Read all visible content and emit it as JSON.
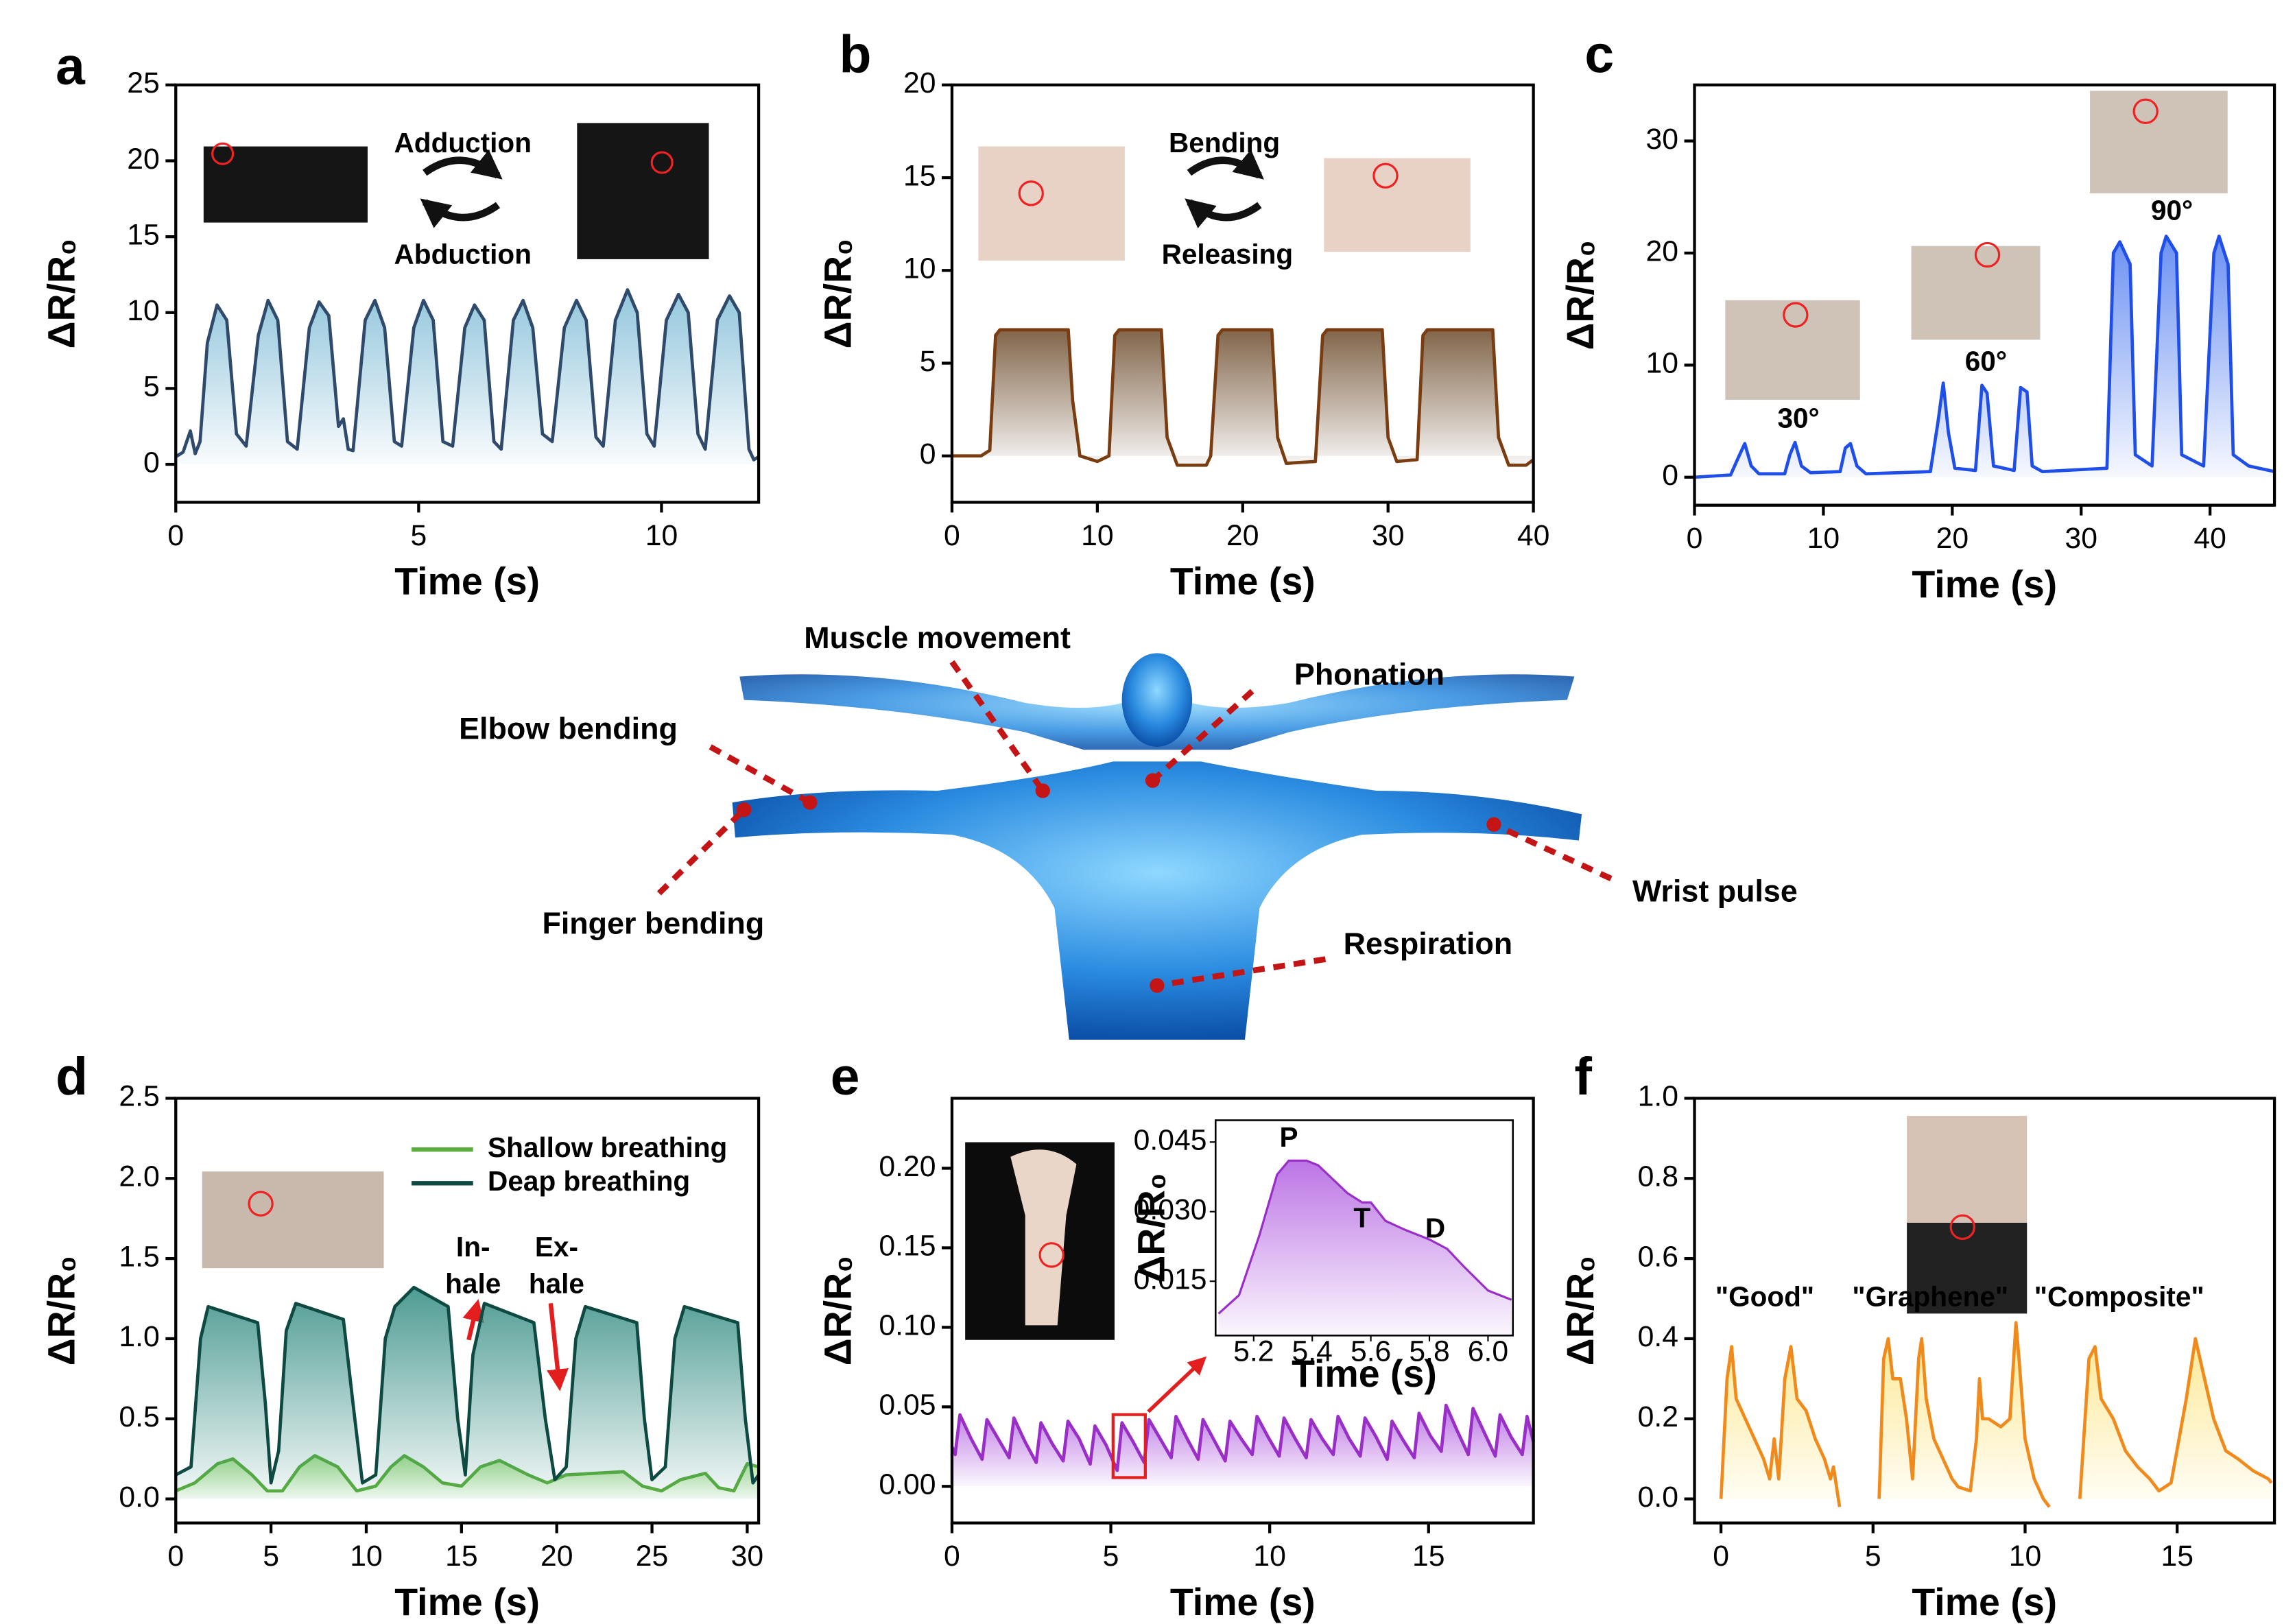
{
  "chart_data": [
    {
      "type": "line",
      "panel_label": "a",
      "xlabel": "Time (s)",
      "ylabel": "ΔR/R₀",
      "xlim": [
        0,
        12
      ],
      "ylim": [
        -2.5,
        25
      ],
      "xticks": [
        0,
        5,
        10
      ],
      "yticks": [
        0,
        5,
        10,
        15,
        20,
        25
      ],
      "annotations": [
        "Adduction",
        "Abduction"
      ],
      "series": [
        {
          "color": "#2f4a6b",
          "fill": "#7fbcd6",
          "x": [
            0,
            0.15,
            0.3,
            0.4,
            0.5,
            0.65,
            0.85,
            1.05,
            1.25,
            1.45,
            1.7,
            1.9,
            2.1,
            2.3,
            2.5,
            2.75,
            2.95,
            3.15,
            3.35,
            3.45,
            3.55,
            3.65,
            3.9,
            4.1,
            4.3,
            4.5,
            4.65,
            4.9,
            5.1,
            5.3,
            5.5,
            5.7,
            5.95,
            6.15,
            6.35,
            6.55,
            6.7,
            6.95,
            7.15,
            7.35,
            7.55,
            7.75,
            8.0,
            8.25,
            8.45,
            8.65,
            8.8,
            9.05,
            9.3,
            9.5,
            9.7,
            9.85,
            10.1,
            10.35,
            10.55,
            10.75,
            10.9,
            11.15,
            11.4,
            11.6,
            11.8,
            11.9,
            12
          ],
          "values": [
            0.5,
            0.8,
            2.2,
            0.7,
            1.5,
            8,
            10.5,
            9.5,
            2,
            1.2,
            8.5,
            10.8,
            9.5,
            1.5,
            1,
            9,
            10.7,
            9.8,
            2.5,
            3,
            1,
            0.9,
            9.5,
            10.8,
            9,
            1.5,
            1.2,
            9,
            10.8,
            9.5,
            1.5,
            1.2,
            9,
            10.5,
            9.5,
            1.5,
            1,
            9.5,
            10.8,
            9,
            2,
            1.5,
            9,
            10.8,
            9.5,
            1.8,
            1.2,
            9.5,
            11.5,
            10,
            2,
            1.2,
            9.5,
            11.2,
            10,
            2,
            1,
            9.5,
            11.1,
            10,
            1,
            0.3,
            0.5
          ]
        }
      ]
    },
    {
      "type": "line",
      "panel_label": "b",
      "xlabel": "Time (s)",
      "ylabel": "ΔR/R₀",
      "xlim": [
        0,
        40
      ],
      "ylim": [
        -2.5,
        20
      ],
      "xticks": [
        0,
        10,
        20,
        30,
        40
      ],
      "yticks": [
        0,
        5,
        10,
        15,
        20
      ],
      "annotations": [
        "Bending",
        "Releasing"
      ],
      "series": [
        {
          "color": "#7a3d12",
          "fill": "#6b4a2a",
          "x": [
            0,
            2,
            2.6,
            3,
            3.3,
            8,
            8.3,
            8.8,
            10,
            10.8,
            11.2,
            11.5,
            14.4,
            14.8,
            15.5,
            17.5,
            17.8,
            18.3,
            18.6,
            22,
            22.4,
            23,
            25,
            25.5,
            25.8,
            29.6,
            30,
            30.6,
            32,
            32.4,
            32.7,
            37.2,
            37.6,
            38.3,
            39.5,
            40
          ],
          "values": [
            0,
            0,
            0.3,
            6.5,
            6.8,
            6.8,
            3,
            0,
            -0.3,
            0,
            6.5,
            6.8,
            6.8,
            1,
            -0.5,
            -0.5,
            0,
            6.5,
            6.8,
            6.8,
            1,
            -0.4,
            -0.3,
            6.5,
            6.8,
            6.8,
            1,
            -0.3,
            -0.2,
            6.5,
            6.8,
            6.8,
            1,
            -0.5,
            -0.5,
            -0.2
          ]
        }
      ]
    },
    {
      "type": "line",
      "panel_label": "c",
      "xlabel": "Time (s)",
      "ylabel": "ΔR/R₀",
      "xlim": [
        0,
        45
      ],
      "ylim": [
        -2.5,
        35
      ],
      "xticks": [
        0,
        10,
        20,
        30,
        40
      ],
      "yticks": [
        0,
        10,
        20,
        30
      ],
      "annotations": [
        "30°",
        "60°",
        "90°"
      ],
      "series": [
        {
          "color": "#1f4ee8",
          "fill": "#4f7cf0",
          "x": [
            0,
            2.8,
            3.3,
            3.9,
            4.4,
            5,
            7,
            7.4,
            7.8,
            8.3,
            9,
            11.3,
            11.7,
            12.1,
            12.6,
            13.3,
            18.3,
            18.9,
            19.3,
            19.7,
            20.2,
            21.8,
            22.3,
            22.7,
            23.2,
            24.8,
            25.3,
            25.8,
            26.2,
            27,
            32,
            32.5,
            33,
            33.8,
            34.2,
            35.5,
            36.2,
            36.6,
            37.4,
            37.8,
            39.5,
            40.3,
            40.7,
            41.4,
            41.8,
            43,
            45
          ],
          "values": [
            0,
            0.2,
            1.5,
            3,
            1,
            0.3,
            0.3,
            2,
            3.1,
            1,
            0.4,
            0.5,
            2.6,
            3,
            1,
            0.3,
            0.5,
            5,
            8.4,
            4,
            0.8,
            0.6,
            8.2,
            7.5,
            1,
            0.6,
            8,
            7.6,
            1,
            0.5,
            0.8,
            20,
            21,
            19,
            2,
            1,
            20,
            21.5,
            20,
            2,
            1,
            20,
            21.5,
            19,
            2,
            1,
            0.5
          ]
        }
      ]
    },
    {
      "type": "line",
      "panel_label": "d",
      "xlabel": "Time (s)",
      "ylabel": "ΔR/R₀",
      "xlim": [
        0,
        30.6
      ],
      "ylim": [
        -0.15,
        2.5
      ],
      "xticks": [
        0,
        5,
        10,
        15,
        20,
        25,
        30
      ],
      "yticks": [
        {
          "value": 0,
          "label": "0.0"
        },
        {
          "value": 0.5,
          "label": "0.5"
        },
        {
          "value": 1,
          "label": "1.0"
        },
        {
          "value": 1.5,
          "label": "1.5"
        },
        {
          "value": 2,
          "label": "2.0"
        },
        {
          "value": 2.5,
          "label": "2.5"
        }
      ],
      "legend": "upper right",
      "annotations": [
        [
          "In-",
          "hale"
        ],
        [
          "Ex-",
          "hale"
        ]
      ],
      "series": [
        {
          "name": "Shallow breathing",
          "color": "#5aae3c",
          "fill": "#9fe07a",
          "x": [
            0,
            1,
            2.2,
            3,
            4,
            4.8,
            5.6,
            6.5,
            7.3,
            8.5,
            9.5,
            10.5,
            11.3,
            12,
            13,
            14,
            15,
            16,
            17,
            18.5,
            19.5,
            20.5,
            22,
            23.5,
            24.5,
            25.5,
            26.5,
            27.8,
            28.5,
            29.3,
            30,
            30.6
          ],
          "values": [
            0.05,
            0.1,
            0.22,
            0.25,
            0.15,
            0.05,
            0.05,
            0.2,
            0.27,
            0.2,
            0.05,
            0.08,
            0.2,
            0.27,
            0.2,
            0.1,
            0.08,
            0.2,
            0.24,
            0.15,
            0.1,
            0.15,
            0.16,
            0.17,
            0.08,
            0.05,
            0.12,
            0.16,
            0.07,
            0.05,
            0.22,
            0.2
          ]
        },
        {
          "name": "Deap breathing",
          "color": "#0e4a42",
          "fill": "#2f8a80",
          "x": [
            0,
            0.8,
            1.3,
            1.7,
            4.3,
            4.7,
            5,
            5.4,
            5.8,
            6.3,
            8.8,
            9.3,
            9.8,
            10.5,
            11,
            11.5,
            12.5,
            14.3,
            14.8,
            15.2,
            15.6,
            16.2,
            18.8,
            19.4,
            19.9,
            20.5,
            21,
            21.5,
            24.2,
            24.6,
            25,
            25.7,
            26.2,
            26.7,
            29.5,
            29.9,
            30.3,
            30.6
          ],
          "values": [
            0.15,
            0.2,
            1,
            1.2,
            1.1,
            0.6,
            0.1,
            0.3,
            1.05,
            1.22,
            1.12,
            0.6,
            0.1,
            0.15,
            1,
            1.2,
            1.32,
            1.2,
            0.5,
            0.15,
            0.9,
            1.22,
            1.1,
            0.5,
            0.12,
            0.2,
            1,
            1.2,
            1.1,
            0.5,
            0.12,
            0.2,
            1,
            1.2,
            1.1,
            0.5,
            0.1,
            0.15
          ]
        }
      ]
    },
    {
      "type": "line",
      "panel_label": "e",
      "xlabel": "Time (s)",
      "ylabel": "ΔR/R₀",
      "xlim": [
        0,
        18.3
      ],
      "ylim": [
        -0.023,
        0.244
      ],
      "xticks": [
        0,
        5,
        10,
        15
      ],
      "yticks": [
        {
          "value": 0,
          "label": "0.00"
        },
        {
          "value": 0.05,
          "label": "0.05"
        },
        {
          "value": 0.1,
          "label": "0.10"
        },
        {
          "value": 0.15,
          "label": "0.15"
        },
        {
          "value": 0.2,
          "label": "0.20"
        }
      ],
      "series": [
        {
          "color": "#9a2fc8",
          "fill": "#b05ce0",
          "x": [
            0,
            0.1,
            0.25,
            0.6,
            0.95,
            1.1,
            1.45,
            1.8,
            1.95,
            2.3,
            2.65,
            2.8,
            3.15,
            3.5,
            3.65,
            4.0,
            4.35,
            4.5,
            4.85,
            5.2,
            5.35,
            5.7,
            6.05,
            6.2,
            6.55,
            6.9,
            7.05,
            7.4,
            7.75,
            7.9,
            8.25,
            8.6,
            8.75,
            9.1,
            9.45,
            9.6,
            9.95,
            10.3,
            10.45,
            10.8,
            11.15,
            11.3,
            11.65,
            12.0,
            12.15,
            12.5,
            12.85,
            13.0,
            13.35,
            13.7,
            13.85,
            14.2,
            14.55,
            14.7,
            15.05,
            15.4,
            15.55,
            15.9,
            16.25,
            16.4,
            16.75,
            17.1,
            17.25,
            17.6,
            17.95,
            18.1,
            18.3
          ],
          "values": [
            0.025,
            0.02,
            0.045,
            0.03,
            0.017,
            0.042,
            0.03,
            0.018,
            0.043,
            0.028,
            0.015,
            0.04,
            0.027,
            0.016,
            0.041,
            0.03,
            0.014,
            0.038,
            0.026,
            0.01,
            0.04,
            0.028,
            0.015,
            0.042,
            0.03,
            0.018,
            0.044,
            0.03,
            0.017,
            0.042,
            0.029,
            0.016,
            0.041,
            0.03,
            0.02,
            0.044,
            0.031,
            0.019,
            0.043,
            0.03,
            0.018,
            0.042,
            0.03,
            0.02,
            0.044,
            0.03,
            0.019,
            0.043,
            0.031,
            0.017,
            0.041,
            0.029,
            0.018,
            0.046,
            0.032,
            0.022,
            0.051,
            0.035,
            0.02,
            0.049,
            0.034,
            0.019,
            0.045,
            0.031,
            0.02,
            0.044,
            0.028
          ]
        }
      ]
    },
    {
      "type": "line",
      "xlabel": "Time (s)",
      "ylabel": "ΔR/R₀",
      "xlim": [
        5.07,
        6.085
      ],
      "ylim": [
        0.0033,
        0.0497
      ],
      "xticks": [
        5.2,
        5.4,
        5.6,
        5.8,
        {
          "value": 6,
          "label": "6.0"
        }
      ],
      "yticks": [
        0.015,
        {
          "value": 0.03,
          "label": "0.030"
        },
        0.045
      ],
      "annotations": [
        "P",
        "T",
        "D"
      ],
      "series": [
        {
          "color": "#9a2fc8",
          "fill": "#b05ce0",
          "x": [
            5.08,
            5.15,
            5.22,
            5.28,
            5.32,
            5.38,
            5.42,
            5.47,
            5.52,
            5.57,
            5.6,
            5.65,
            5.72,
            5.8,
            5.86,
            5.92,
            6.0,
            6.08
          ],
          "values": [
            0.008,
            0.012,
            0.025,
            0.038,
            0.041,
            0.041,
            0.04,
            0.037,
            0.034,
            0.032,
            0.032,
            0.028,
            0.026,
            0.024,
            0.022,
            0.018,
            0.013,
            0.011
          ]
        }
      ]
    },
    {
      "type": "line",
      "panel_label": "f",
      "xlabel": "Time (s)",
      "ylabel": "ΔR/R₀",
      "xlim": [
        -0.87,
        18.2
      ],
      "ylim": [
        -0.06,
        1
      ],
      "xticks": [
        0,
        5,
        10,
        15
      ],
      "yticks": [
        {
          "value": 0,
          "label": "0.0"
        },
        {
          "value": 0.2,
          "label": "0.2"
        },
        {
          "value": 0.4,
          "label": "0.4"
        },
        {
          "value": 0.6,
          "label": "0.6"
        },
        {
          "value": 0.8,
          "label": "0.8"
        },
        {
          "value": 1,
          "label": "1.0"
        }
      ],
      "annotations": [
        "\"Good\"",
        "\"Graphene\"",
        "\"Composite\""
      ],
      "series": [
        {
          "color": "#f08a1c",
          "fill": "#fde37a",
          "x": [
            0,
            0.2,
            0.35,
            0.5,
            0.8,
            1.1,
            1.4,
            1.6,
            1.75,
            1.9,
            2.1,
            2.3,
            2.5,
            2.8,
            3.1,
            3.4,
            3.6,
            3.7,
            3.9,
            4.5,
            5.2,
            5.35,
            5.5,
            5.65,
            5.9,
            6.1,
            6.3,
            6.5,
            6.6,
            6.75,
            7.0,
            7.3,
            7.6,
            7.8,
            8.2,
            8.4,
            8.5,
            8.6,
            8.8,
            9.2,
            9.5,
            9.7,
            9.8,
            10.0,
            10.3,
            10.6,
            10.8,
            11.3,
            11.8,
            12.1,
            12.3,
            12.5,
            12.9,
            13.3,
            13.7,
            14.1,
            14.4,
            14.8,
            15.3,
            15.6,
            15.9,
            16.2,
            16.6,
            17.0,
            17.5,
            18.0,
            18.1
          ],
          "values": [
            0,
            0.3,
            0.38,
            0.25,
            0.2,
            0.15,
            0.1,
            0.05,
            0.15,
            0.05,
            0.3,
            0.38,
            0.25,
            0.22,
            0.15,
            0.1,
            0.05,
            0.08,
            -0.02,
            null,
            0,
            0.35,
            0.4,
            0.3,
            0.3,
            0.2,
            0.05,
            0.35,
            0.4,
            0.25,
            0.15,
            0.1,
            0.05,
            0.03,
            0.02,
            0.15,
            0.3,
            0.2,
            0.2,
            0.18,
            0.2,
            0.44,
            0.35,
            0.15,
            0.05,
            0,
            -0.02,
            null,
            0,
            0.35,
            0.38,
            0.25,
            0.2,
            0.12,
            0.08,
            0.05,
            0.02,
            0.04,
            0.25,
            0.4,
            0.3,
            0.2,
            0.12,
            0.1,
            0.07,
            0.05,
            0.04
          ]
        }
      ]
    }
  ],
  "body_diagram": {
    "labels": [
      "Muscle movement",
      "Phonation",
      "Elbow bending",
      "Finger bending",
      "Wrist pulse",
      "Respiration"
    ]
  }
}
